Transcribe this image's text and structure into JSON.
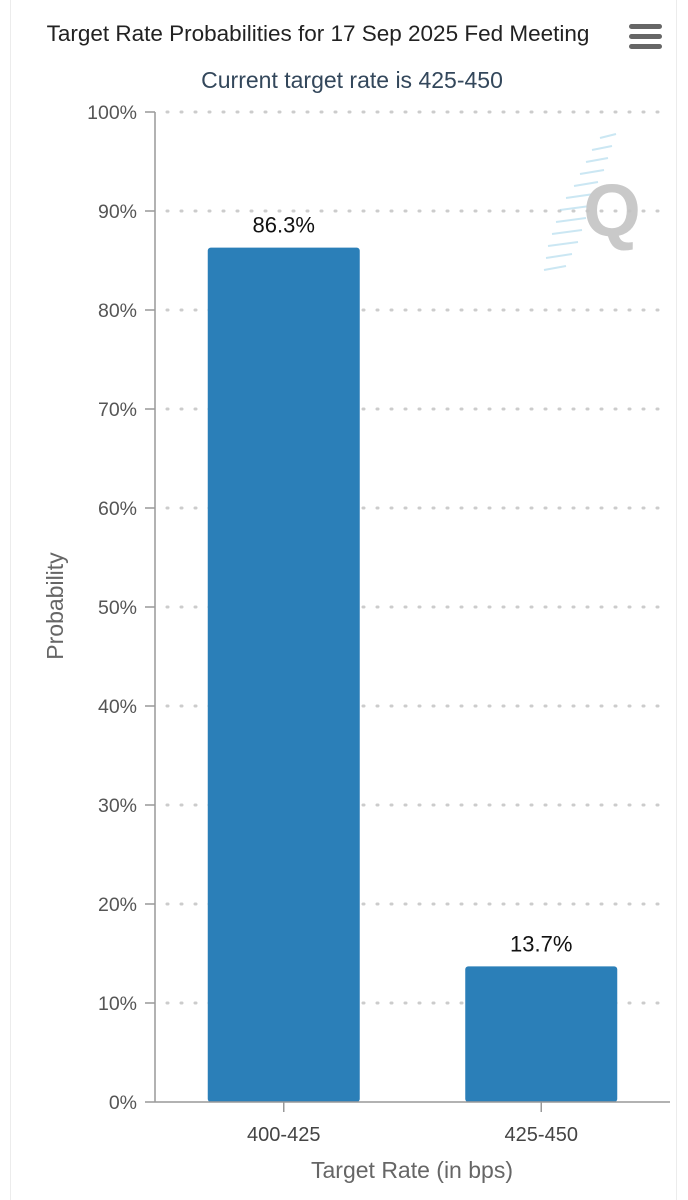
{
  "chart_data": {
    "type": "bar",
    "title": "Target Rate Probabilities for 17 Sep 2025 Fed Meeting",
    "subtitle": "Current target rate is 425-450",
    "xlabel": "Target Rate (in bps)",
    "ylabel": "Probability",
    "categories": [
      "400-425",
      "425-450"
    ],
    "values": [
      86.3,
      13.7
    ],
    "data_labels": [
      "86.3%",
      "13.7%"
    ],
    "ylim": [
      0,
      100
    ],
    "yticks": [
      0,
      10,
      20,
      30,
      40,
      50,
      60,
      70,
      80,
      90,
      100
    ],
    "ytick_labels": [
      "0%",
      "10%",
      "20%",
      "30%",
      "40%",
      "50%",
      "60%",
      "70%",
      "80%",
      "90%",
      "100%"
    ],
    "grid": "horizontal-dotted",
    "legend": "none",
    "colors": {
      "bar": "#2b7fb8",
      "title": "#222222",
      "subtitle": "#33475b",
      "axis_text": "#555555",
      "grid": "#cccccc",
      "watermark": "#bdbdbd"
    }
  },
  "toolbar": {
    "menu_icon": "hamburger-menu-icon"
  }
}
